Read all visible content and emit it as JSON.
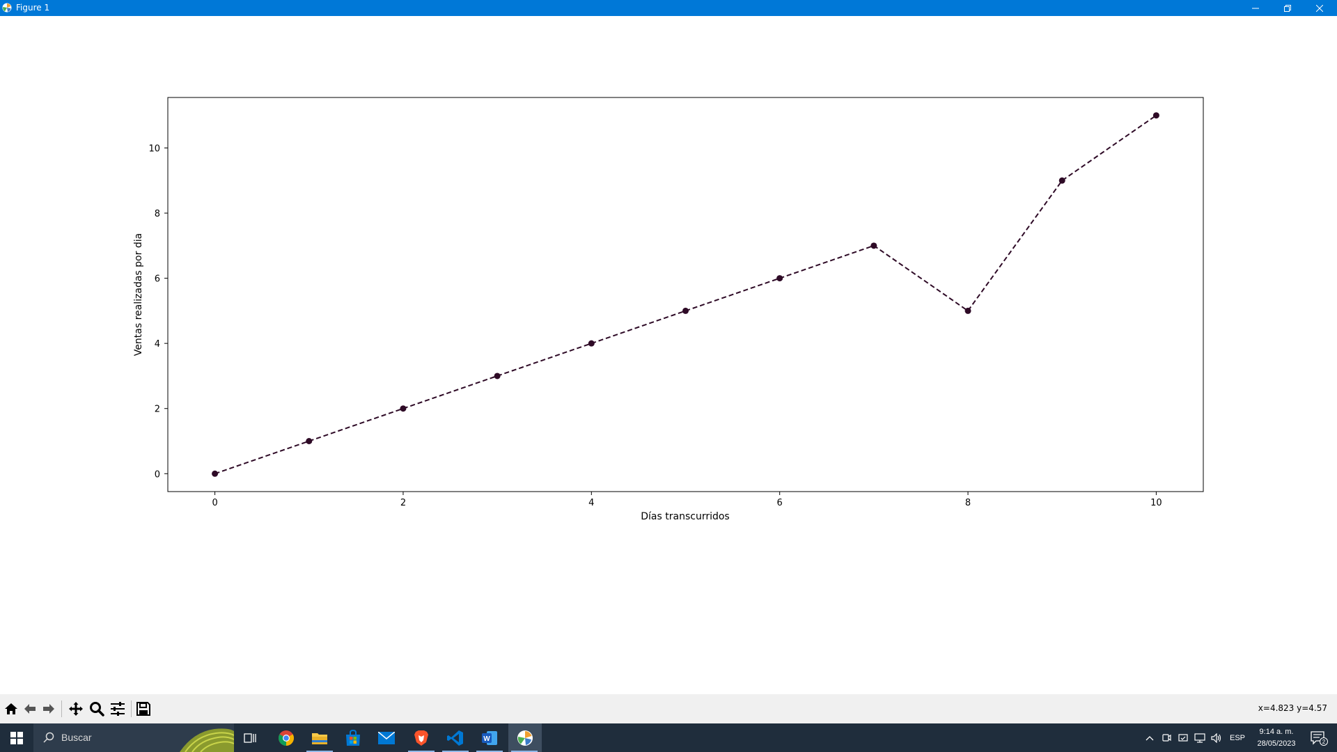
{
  "window": {
    "title": "Figure 1",
    "controls": [
      "minimize-icon",
      "restore-icon",
      "close-icon"
    ]
  },
  "chart_data": {
    "type": "line",
    "x": [
      0,
      1,
      2,
      3,
      4,
      5,
      6,
      7,
      8,
      9,
      10
    ],
    "series": [
      {
        "values": [
          0,
          1,
          2,
          3,
          4,
          5,
          6,
          7,
          5,
          9,
          11
        ]
      }
    ],
    "line_style": "dashed",
    "marker": "circle",
    "color": "#2e0a26",
    "xlabel": "Días transcurridos",
    "ylabel": "Ventas realizadas por dia",
    "xlim": [
      -0.5,
      10.5
    ],
    "ylim": [
      -0.55,
      11.55
    ],
    "xticks": [
      0,
      2,
      4,
      6,
      8,
      10
    ],
    "yticks": [
      0,
      2,
      4,
      6,
      8,
      10
    ],
    "grid": false
  },
  "toolbar": {
    "buttons": [
      "home-icon",
      "back-icon",
      "forward-icon",
      "pan-icon",
      "zoom-icon",
      "configure-subplots-icon",
      "save-icon"
    ],
    "coordinates": "x=4.823 y=4.57"
  },
  "taskbar": {
    "search_placeholder": "Buscar",
    "pinned_apps": [
      "task-view-icon",
      "chrome-icon",
      "file-explorer-icon",
      "store-icon",
      "mail-icon",
      "brave-icon",
      "vscode-icon",
      "word-icon",
      "matplotlib-icon"
    ],
    "language": "ESP",
    "time": "9:14 a. m.",
    "date": "28/05/2023",
    "notification_count": "2"
  }
}
